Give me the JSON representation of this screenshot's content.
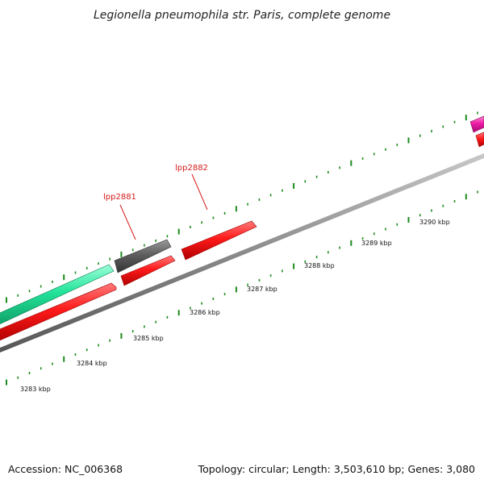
{
  "title": "Legionella pneumophila str. Paris, complete genome",
  "footer": {
    "accession": "Accession: NC_006368",
    "summary": "Topology: circular; Length: 3,503,610 bp; Genes: 3,080"
  },
  "colors": {
    "backbone": "#8a8a8a",
    "tick": "#1e8a1e",
    "gene_forward": "#e81818",
    "gene_other": "#555555",
    "gene_teal": "#22d08e",
    "gene_magenta": "#e0189a",
    "label_line": "#d41a1a"
  },
  "scale_ticks": [
    "3283 kbp",
    "3284 kbp",
    "3285 kbp",
    "3286 kbp",
    "3287 kbp",
    "3288 kbp",
    "3289 kbp",
    "3290 kbp"
  ],
  "gene_labels": [
    {
      "name": "lpp2881"
    },
    {
      "name": "lpp2882"
    }
  ]
}
